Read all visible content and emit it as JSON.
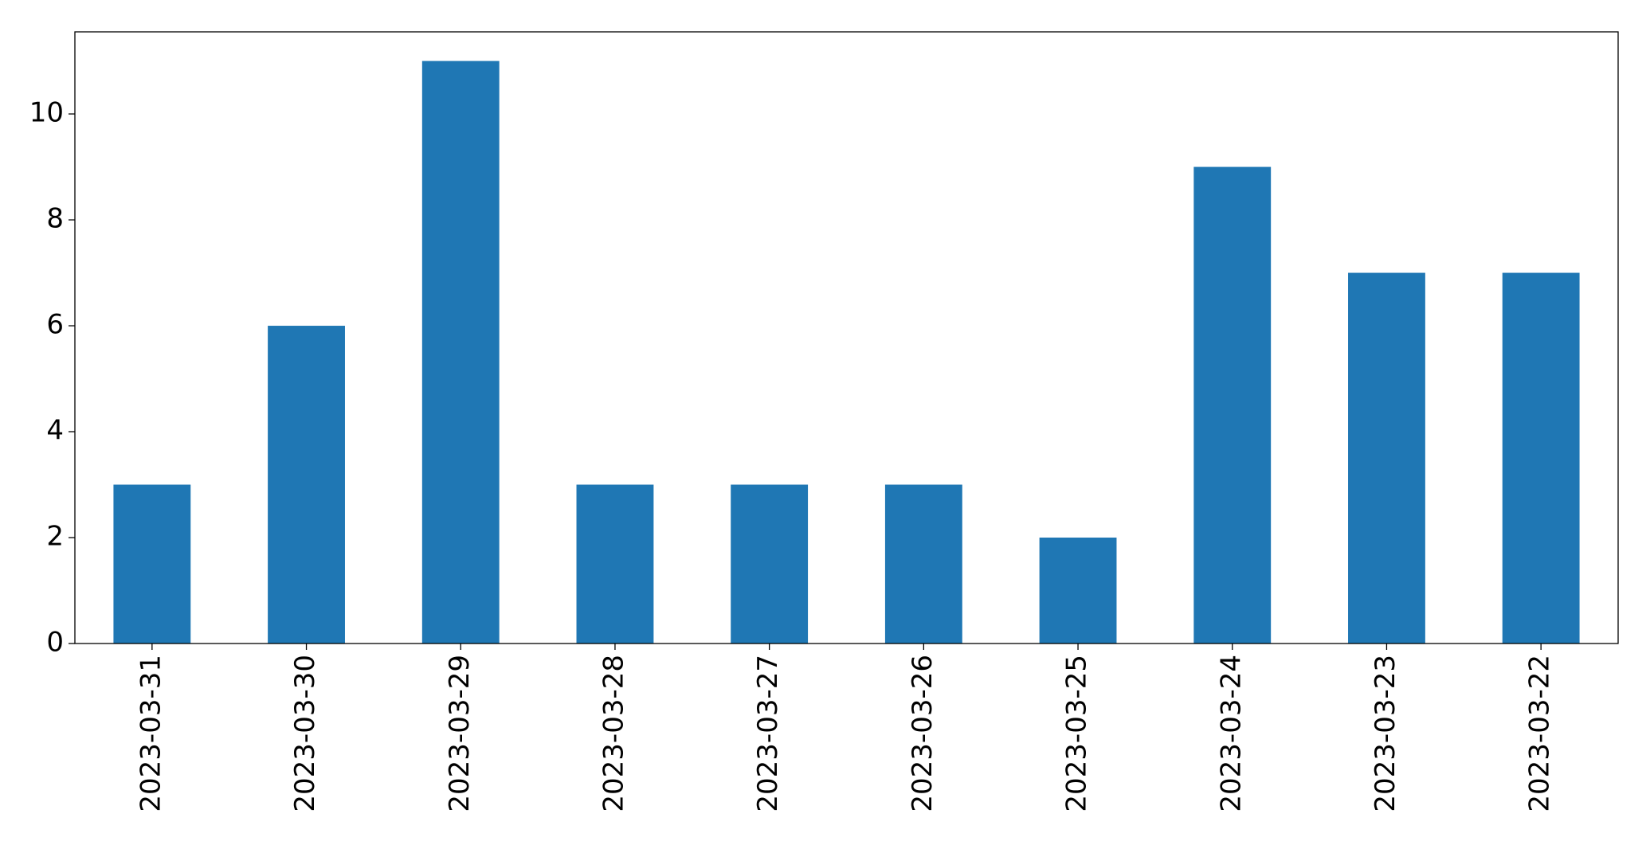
{
  "chart_data": {
    "type": "bar",
    "categories": [
      "2023-03-31",
      "2023-03-30",
      "2023-03-29",
      "2023-03-28",
      "2023-03-27",
      "2023-03-26",
      "2023-03-25",
      "2023-03-24",
      "2023-03-23",
      "2023-03-22"
    ],
    "values": [
      3,
      6,
      11,
      3,
      3,
      3,
      2,
      9,
      7,
      7
    ],
    "color": "#1f77b4",
    "ylim": [
      0,
      11.55
    ],
    "yticks": [
      0,
      2,
      4,
      6,
      8,
      10
    ],
    "grid": false
  }
}
